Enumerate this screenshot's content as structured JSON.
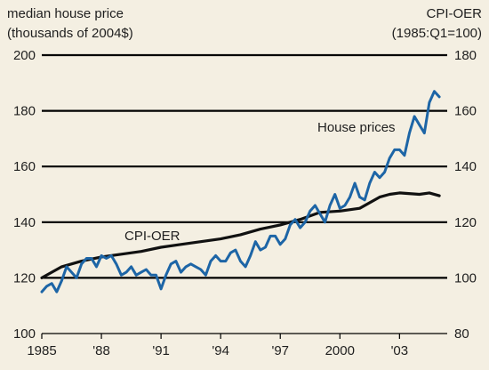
{
  "chart_data": {
    "type": "line",
    "left_axis_label": [
      "median house price",
      "(thousands of 2004$)"
    ],
    "right_axis_label": [
      "CPI-OER",
      "(1985:Q1=100)"
    ],
    "x_ticks": [
      {
        "year": 1985,
        "label": "1985"
      },
      {
        "year": 1988,
        "label": "'88"
      },
      {
        "year": 1991,
        "label": "'91"
      },
      {
        "year": 1994,
        "label": "'94"
      },
      {
        "year": 1997,
        "label": "'97"
      },
      {
        "year": 2000,
        "label": "2000"
      },
      {
        "year": 2003,
        "label": "'03"
      }
    ],
    "xlim": [
      1985,
      2005.4
    ],
    "ylim_left": [
      100,
      200
    ],
    "left_ticks": [
      100,
      120,
      140,
      160,
      180,
      200
    ],
    "ylim_right": [
      80,
      180
    ],
    "right_ticks": [
      80,
      100,
      120,
      140,
      160,
      180
    ],
    "grid": true,
    "series": [
      {
        "name": "House prices",
        "axis": "left",
        "color": "#1d65a6",
        "x": [
          1985.0,
          1985.25,
          1985.5,
          1985.75,
          1986.0,
          1986.25,
          1986.5,
          1986.75,
          1987.0,
          1987.25,
          1987.5,
          1987.75,
          1988.0,
          1988.25,
          1988.5,
          1988.75,
          1989.0,
          1989.25,
          1989.5,
          1989.75,
          1990.0,
          1990.25,
          1990.5,
          1990.75,
          1991.0,
          1991.25,
          1991.5,
          1991.75,
          1992.0,
          1992.25,
          1992.5,
          1992.75,
          1993.0,
          1993.25,
          1993.5,
          1993.75,
          1994.0,
          1994.25,
          1994.5,
          1994.75,
          1995.0,
          1995.25,
          1995.5,
          1995.75,
          1996.0,
          1996.25,
          1996.5,
          1996.75,
          1997.0,
          1997.25,
          1997.5,
          1997.75,
          1998.0,
          1998.25,
          1998.5,
          1998.75,
          1999.0,
          1999.25,
          1999.5,
          1999.75,
          2000.0,
          2000.25,
          2000.5,
          2000.75,
          2001.0,
          2001.25,
          2001.5,
          2001.75,
          2002.0,
          2002.25,
          2002.5,
          2002.75,
          2003.0,
          2003.25,
          2003.5,
          2003.75,
          2004.0,
          2004.25,
          2004.5,
          2004.75,
          2005.0
        ],
        "values": [
          115,
          117,
          118,
          115,
          119,
          124,
          122,
          120,
          125,
          127,
          127,
          124,
          128,
          127,
          128,
          125,
          121,
          122,
          124,
          121,
          122,
          123,
          121,
          121,
          116,
          121,
          125,
          126,
          122,
          124,
          125,
          124,
          123,
          121,
          126,
          128,
          126,
          126,
          129,
          130,
          126,
          124,
          128,
          133,
          130,
          131,
          135,
          135,
          132,
          134,
          139,
          141,
          138,
          140,
          144,
          146,
          143,
          140,
          146,
          150,
          145,
          146,
          149,
          154,
          149,
          148,
          154,
          158,
          156,
          158,
          163,
          166,
          166,
          164,
          172,
          178,
          175,
          172,
          183,
          187,
          185
        ]
      },
      {
        "name": "CPI-OER",
        "axis": "right",
        "color": "#111111",
        "x": [
          1985.0,
          1986.0,
          1987.0,
          1988.0,
          1989.0,
          1990.0,
          1991.0,
          1992.0,
          1993.0,
          1994.0,
          1995.0,
          1996.0,
          1997.0,
          1998.0,
          1999.0,
          2000.0,
          2001.0,
          2002.0,
          2002.5,
          2003.0,
          2004.0,
          2004.5,
          2005.0
        ],
        "values": [
          100,
          104,
          106,
          107.5,
          108.5,
          109.5,
          111,
          112,
          113,
          114,
          115.5,
          117.5,
          119,
          121,
          123.5,
          124,
          125,
          129,
          130,
          130.5,
          130,
          130.5,
          129.5
        ]
      }
    ],
    "annotations": [
      {
        "text": "House prices",
        "series": "House prices"
      },
      {
        "text": "CPI-OER",
        "series": "CPI-OER"
      }
    ]
  }
}
